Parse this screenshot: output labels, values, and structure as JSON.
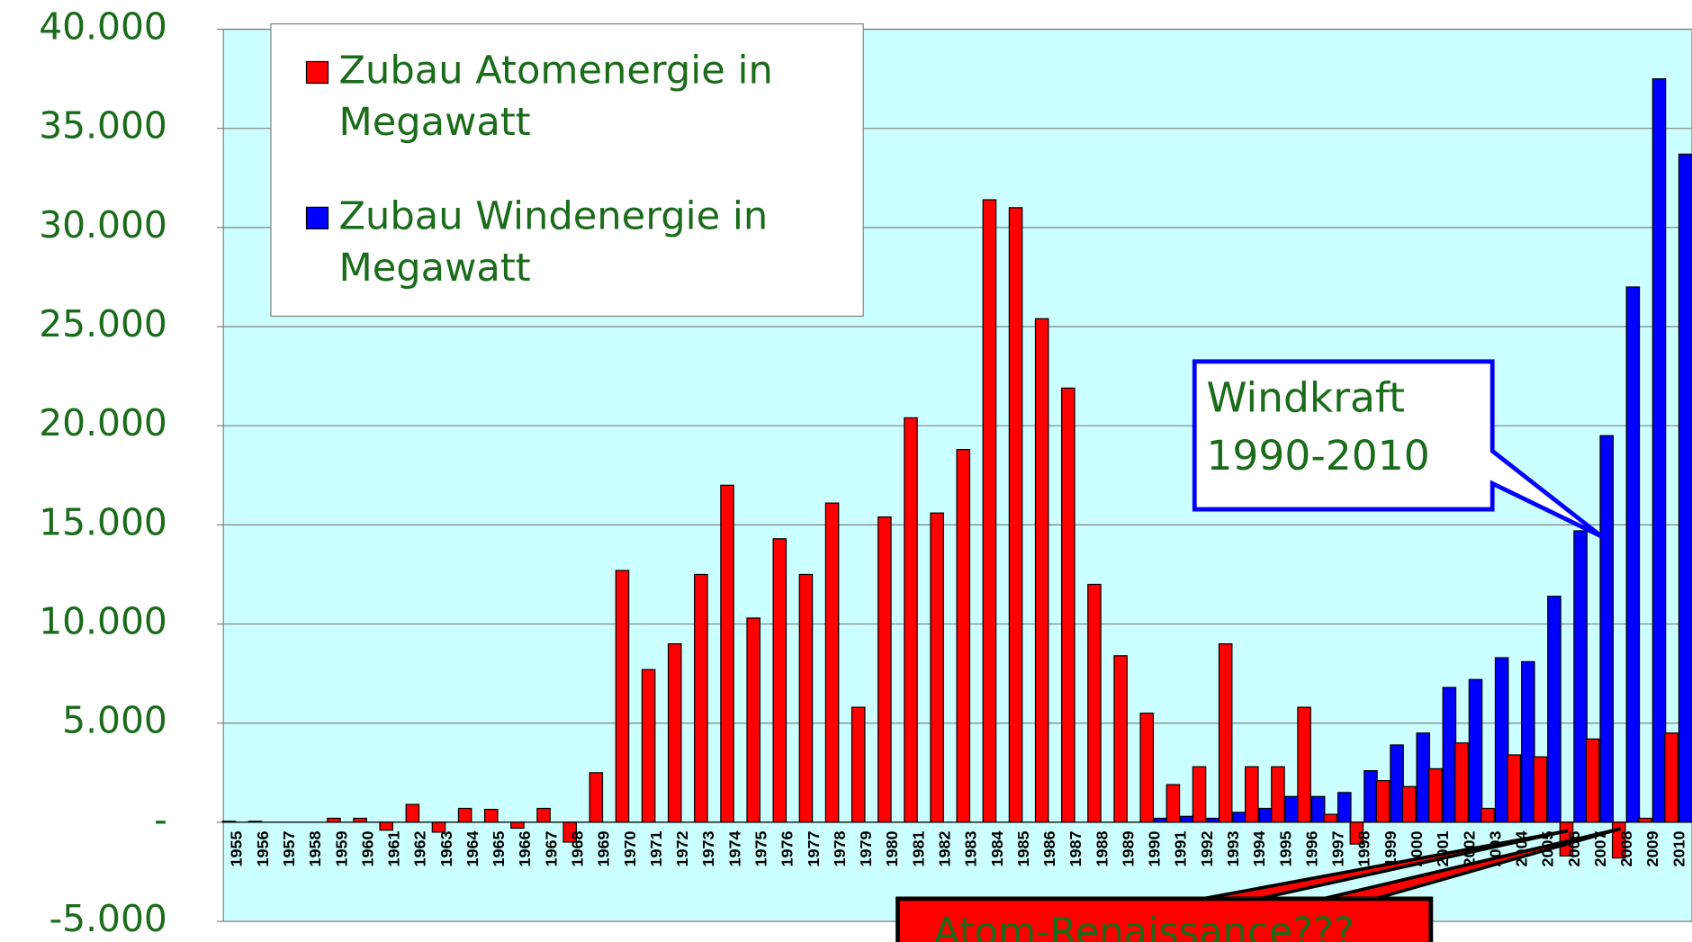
{
  "chart_data": {
    "type": "bar",
    "categories": [
      "1955",
      "1956",
      "1957",
      "1958",
      "1959",
      "1960",
      "1961",
      "1962",
      "1963",
      "1964",
      "1965",
      "1966",
      "1967",
      "1968",
      "1969",
      "1970",
      "1971",
      "1972",
      "1973",
      "1974",
      "1975",
      "1976",
      "1977",
      "1978",
      "1979",
      "1980",
      "1981",
      "1982",
      "1983",
      "1984",
      "1985",
      "1986",
      "1987",
      "1988",
      "1989",
      "1990",
      "1991",
      "1992",
      "1993",
      "1994",
      "1995",
      "1996",
      "1997",
      "1998",
      "1999",
      "2000",
      "2001",
      "2002",
      "2003",
      "2004",
      "2005",
      "2006",
      "2007",
      "2008",
      "2009",
      "2010"
    ],
    "series": [
      {
        "name": "Zubau Atomenergie in Megawatt",
        "color": "#ff0000",
        "values": [
          50,
          50,
          0,
          0,
          200,
          200,
          -400,
          900,
          -500,
          700,
          650,
          -300,
          700,
          -1000,
          2500,
          12700,
          7700,
          9000,
          12500,
          17000,
          10300,
          14300,
          12500,
          16100,
          5800,
          15400,
          20400,
          15600,
          18800,
          31400,
          31000,
          25400,
          21900,
          12000,
          8400,
          5500,
          1900,
          2800,
          9000,
          2800,
          2800,
          5800,
          400,
          -1100,
          2100,
          1800,
          2700,
          4000,
          700,
          3400,
          3300,
          -1700,
          4200,
          -1800,
          200,
          4500
        ]
      },
      {
        "name": "Zubau Windenergie in Megawatt",
        "color": "#0000ff",
        "values": [
          null,
          null,
          null,
          null,
          null,
          null,
          null,
          null,
          null,
          null,
          null,
          null,
          null,
          null,
          null,
          null,
          null,
          null,
          null,
          null,
          null,
          null,
          null,
          null,
          null,
          null,
          null,
          null,
          null,
          null,
          null,
          null,
          null,
          null,
          null,
          200,
          300,
          200,
          500,
          700,
          1300,
          1300,
          1500,
          2600,
          3900,
          4500,
          6800,
          7200,
          8300,
          8100,
          11400,
          14700,
          19500,
          27000,
          37500,
          33700
        ]
      }
    ],
    "ylim": [
      -5000,
      40000
    ],
    "yticks": [
      {
        "value": -5000,
        "label": "-5.000"
      },
      {
        "value": 0,
        "label": "-"
      },
      {
        "value": 5000,
        "label": "5.000"
      },
      {
        "value": 10000,
        "label": "10.000"
      },
      {
        "value": 15000,
        "label": "15.000"
      },
      {
        "value": 20000,
        "label": "20.000"
      },
      {
        "value": 25000,
        "label": "25.000"
      },
      {
        "value": 30000,
        "label": "30.000"
      },
      {
        "value": 35000,
        "label": "35.000"
      },
      {
        "value": 40000,
        "label": "40.000"
      }
    ],
    "grid": true,
    "annotations": [
      [
        "Windkraft",
        "1990-2010"
      ],
      "Atom-Renaissance???"
    ]
  }
}
